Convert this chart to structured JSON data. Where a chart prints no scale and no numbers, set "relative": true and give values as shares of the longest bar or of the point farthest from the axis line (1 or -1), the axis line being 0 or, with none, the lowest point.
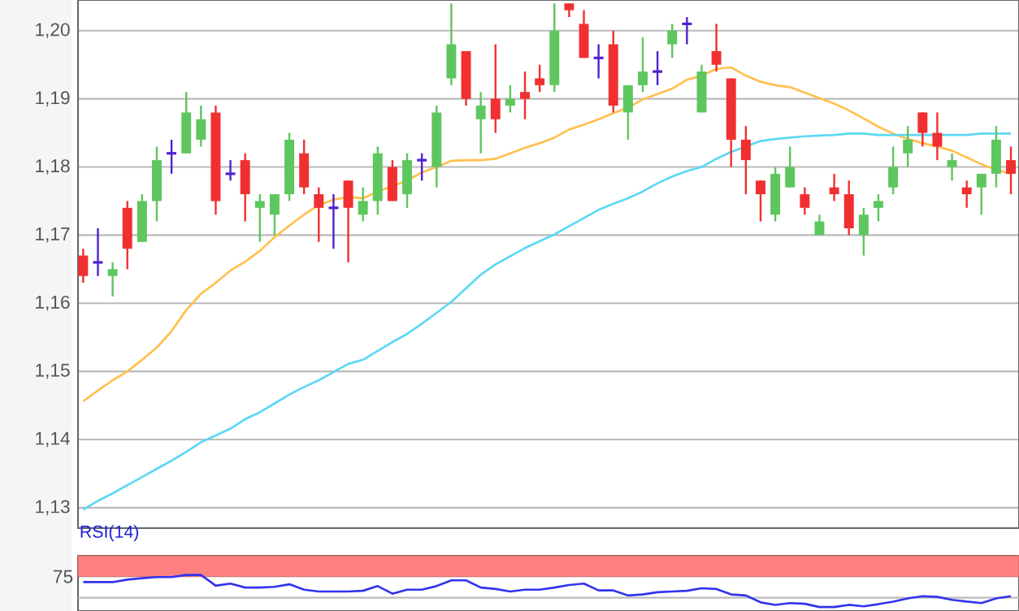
{
  "chart_data": [
    {
      "type": "candlestick",
      "categories": [
        null,
        null,
        null,
        null,
        null,
        null,
        null,
        null,
        null,
        null,
        null,
        null,
        null,
        null,
        null,
        null,
        null,
        null,
        null,
        null,
        null,
        null,
        null,
        null,
        null,
        null,
        null,
        null,
        null,
        null,
        null,
        null,
        null,
        null,
        null,
        null,
        null,
        null,
        null,
        null,
        null,
        null,
        null,
        null,
        null,
        null,
        null,
        null,
        null,
        null,
        null,
        null,
        null,
        null,
        null,
        null,
        null,
        null,
        null,
        null,
        null,
        null,
        null,
        null
      ],
      "ohlc": [
        [
          1.167,
          1.168,
          1.163,
          1.164
        ],
        [
          1.166,
          1.171,
          1.164,
          1.166
        ],
        [
          1.164,
          1.166,
          1.161,
          1.165
        ],
        [
          1.174,
          1.175,
          1.165,
          1.168
        ],
        [
          1.169,
          1.176,
          1.169,
          1.175
        ],
        [
          1.175,
          1.183,
          1.172,
          1.181
        ],
        [
          1.182,
          1.184,
          1.179,
          1.182
        ],
        [
          1.182,
          1.191,
          1.182,
          1.188
        ],
        [
          1.184,
          1.189,
          1.183,
          1.187
        ],
        [
          1.188,
          1.189,
          1.173,
          1.175
        ],
        [
          1.179,
          1.181,
          1.178,
          1.179
        ],
        [
          1.181,
          1.182,
          1.172,
          1.176
        ],
        [
          1.174,
          1.176,
          1.169,
          1.175
        ],
        [
          1.173,
          1.176,
          1.17,
          1.176
        ],
        [
          1.176,
          1.185,
          1.175,
          1.184
        ],
        [
          1.182,
          1.184,
          1.176,
          1.177
        ],
        [
          1.176,
          1.177,
          1.169,
          1.174
        ],
        [
          1.174,
          1.176,
          1.168,
          1.174
        ],
        [
          1.178,
          1.178,
          1.166,
          1.174
        ],
        [
          1.173,
          1.177,
          1.172,
          1.175
        ],
        [
          1.175,
          1.183,
          1.173,
          1.182
        ],
        [
          1.18,
          1.181,
          1.175,
          1.175
        ],
        [
          1.176,
          1.182,
          1.174,
          1.181
        ],
        [
          1.181,
          1.182,
          1.178,
          1.181
        ],
        [
          1.18,
          1.189,
          1.177,
          1.188
        ],
        [
          1.193,
          1.204,
          1.192,
          1.198
        ],
        [
          1.197,
          1.197,
          1.189,
          1.19
        ],
        [
          1.187,
          1.191,
          1.182,
          1.189
        ],
        [
          1.19,
          1.198,
          1.185,
          1.187
        ],
        [
          1.189,
          1.192,
          1.188,
          1.19
        ],
        [
          1.191,
          1.194,
          1.187,
          1.19
        ],
        [
          1.193,
          1.195,
          1.191,
          1.192
        ],
        [
          1.192,
          1.204,
          1.191,
          1.2
        ],
        [
          1.204,
          1.204,
          1.202,
          1.203
        ],
        [
          1.201,
          1.203,
          1.196,
          1.196
        ],
        [
          1.196,
          1.198,
          1.193,
          1.196
        ],
        [
          1.198,
          1.2,
          1.188,
          1.189
        ],
        [
          1.188,
          1.192,
          1.184,
          1.192
        ],
        [
          1.192,
          1.199,
          1.191,
          1.194
        ],
        [
          1.194,
          1.197,
          1.192,
          1.194
        ],
        [
          1.198,
          1.201,
          1.196,
          1.2
        ],
        [
          1.201,
          1.202,
          1.198,
          1.201
        ],
        [
          1.188,
          1.195,
          1.188,
          1.194
        ],
        [
          1.197,
          1.201,
          1.194,
          1.195
        ],
        [
          1.193,
          1.193,
          1.18,
          1.184
        ],
        [
          1.184,
          1.186,
          1.176,
          1.181
        ],
        [
          1.178,
          1.178,
          1.172,
          1.176
        ],
        [
          1.173,
          1.18,
          1.172,
          1.179
        ],
        [
          1.177,
          1.183,
          1.177,
          1.18
        ],
        [
          1.176,
          1.177,
          1.173,
          1.174
        ],
        [
          1.17,
          1.173,
          1.17,
          1.172
        ],
        [
          1.177,
          1.179,
          1.175,
          1.176
        ],
        [
          1.176,
          1.178,
          1.17,
          1.171
        ],
        [
          1.17,
          1.174,
          1.167,
          1.173
        ],
        [
          1.174,
          1.176,
          1.172,
          1.175
        ],
        [
          1.177,
          1.183,
          1.176,
          1.18
        ],
        [
          1.182,
          1.186,
          1.18,
          1.184
        ],
        [
          1.188,
          1.188,
          1.183,
          1.185
        ],
        [
          1.185,
          1.188,
          1.181,
          1.183
        ],
        [
          1.18,
          1.182,
          1.178,
          1.181
        ],
        [
          1.177,
          1.178,
          1.174,
          1.176
        ],
        [
          1.177,
          1.179,
          1.173,
          1.179
        ],
        [
          1.179,
          1.186,
          1.177,
          1.184
        ],
        [
          1.181,
          1.183,
          1.176,
          1.179
        ]
      ],
      "colors": [
        "#f03030",
        "#5020d0",
        "#5ec65e",
        "#f03030",
        "#5ec65e",
        "#5ec65e",
        "#5020d0",
        "#5ec65e",
        "#5ec65e",
        "#f03030",
        "#5020d0",
        "#f03030",
        "#5ec65e",
        "#5ec65e",
        "#5ec65e",
        "#f03030",
        "#f03030",
        "#5020d0",
        "#f03030",
        "#5ec65e",
        "#5ec65e",
        "#f03030",
        "#5ec65e",
        "#5020d0",
        "#5ec65e",
        "#5ec65e",
        "#f03030",
        "#5ec65e",
        "#f03030",
        "#5ec65e",
        "#f03030",
        "#f03030",
        "#5ec65e",
        "#f03030",
        "#f03030",
        "#5020d0",
        "#f03030",
        "#5ec65e",
        "#5ec65e",
        "#5020d0",
        "#5ec65e",
        "#5020d0",
        "#5ec65e",
        "#f03030",
        "#f03030",
        "#f03030",
        "#f03030",
        "#5ec65e",
        "#5ec65e",
        "#f03030",
        "#5ec65e",
        "#f03030",
        "#f03030",
        "#5ec65e",
        "#5ec65e",
        "#5ec65e",
        "#5ec65e",
        "#f03030",
        "#f03030",
        "#5ec65e",
        "#f03030",
        "#5ec65e",
        "#5ec65e",
        "#f03030"
      ],
      "series": [
        {
          "type": "line",
          "color": "#ffc04d",
          "values": [
            1.1456,
            1.1472,
            1.1487,
            1.15,
            1.1517,
            1.1535,
            1.1559,
            1.159,
            1.1614,
            1.163,
            1.1648,
            1.1661,
            1.1677,
            1.1697,
            1.1714,
            1.173,
            1.1744,
            1.1752,
            1.1756,
            1.1754,
            1.1764,
            1.1772,
            1.178,
            1.1792,
            1.18,
            1.1809,
            1.181,
            1.181,
            1.1812,
            1.182,
            1.1828,
            1.1835,
            1.1843,
            1.1855,
            1.1862,
            1.187,
            1.1879,
            1.1887,
            1.1899,
            1.1907,
            1.1915,
            1.1928,
            1.1934,
            1.1944,
            1.1946,
            1.1934,
            1.1925,
            1.192,
            1.1917,
            1.1909,
            1.1901,
            1.1893,
            1.1883,
            1.1871,
            1.1859,
            1.1849,
            1.1841,
            1.1835,
            1.183,
            1.1824,
            1.1814,
            1.1804,
            1.1796,
            1.179
          ]
        },
        {
          "type": "line",
          "color": "#5bd8f5",
          "values": [
            1.1297,
            1.131,
            1.1321,
            1.1333,
            1.1345,
            1.1357,
            1.1369,
            1.1382,
            1.1396,
            1.1406,
            1.1416,
            1.143,
            1.144,
            1.1453,
            1.1466,
            1.1477,
            1.1487,
            1.1499,
            1.1511,
            1.1517,
            1.153,
            1.1543,
            1.1555,
            1.157,
            1.1586,
            1.1602,
            1.1622,
            1.1642,
            1.1657,
            1.1669,
            1.1681,
            1.1691,
            1.1701,
            1.1713,
            1.1725,
            1.1737,
            1.1746,
            1.1754,
            1.1764,
            1.1776,
            1.1786,
            1.1794,
            1.18,
            1.1812,
            1.1822,
            1.183,
            1.1838,
            1.1841,
            1.1843,
            1.1845,
            1.1846,
            1.1847,
            1.1849,
            1.1849,
            1.1847,
            1.1847,
            1.1847,
            1.1847,
            1.1847,
            1.1847,
            1.1847,
            1.1849,
            1.1849,
            1.1849
          ]
        }
      ],
      "ylim": [
        1.127,
        1.2045
      ],
      "yticks": [
        {
          "value": 1.13,
          "label": "1,13"
        },
        {
          "value": 1.14,
          "label": "1,14"
        },
        {
          "value": 1.15,
          "label": "1,15"
        },
        {
          "value": 1.16,
          "label": "1,16"
        },
        {
          "value": 1.17,
          "label": "1,17"
        },
        {
          "value": 1.18,
          "label": "1,18"
        },
        {
          "value": 1.19,
          "label": "1,19"
        },
        {
          "value": 1.2,
          "label": "1,20"
        }
      ],
      "grid": "y"
    },
    {
      "type": "line",
      "title": "RSI(14)",
      "categories": [
        null,
        null,
        null,
        null,
        null,
        null,
        null,
        null,
        null,
        null,
        null,
        null,
        null,
        null,
        null,
        null,
        null,
        null,
        null,
        null,
        null,
        null,
        null,
        null,
        null,
        null,
        null,
        null,
        null,
        null,
        null,
        null,
        null,
        null,
        null,
        null,
        null,
        null,
        null,
        null,
        null,
        null,
        null,
        null,
        null,
        null,
        null,
        null,
        null,
        null,
        null,
        null,
        null,
        null,
        null,
        null,
        null,
        null,
        null,
        null,
        null,
        null,
        null,
        null
      ],
      "series": [
        {
          "color": "#3333ee",
          "values": [
            0.8,
            0.8,
            0.8,
            0.87,
            0.91,
            0.94,
            0.94,
            1,
            1,
            0.7,
            0.76,
            0.65,
            0.65,
            0.67,
            0.74,
            0.59,
            0.54,
            0.54,
            0.54,
            0.56,
            0.69,
            0.48,
            0.59,
            0.59,
            0.69,
            0.85,
            0.85,
            0.65,
            0.61,
            0.54,
            0.59,
            0.59,
            0.65,
            0.72,
            0.76,
            0.57,
            0.57,
            0.43,
            0.46,
            0.52,
            0.54,
            0.56,
            0.63,
            0.61,
            0.46,
            0.43,
            0.24,
            0.17,
            0.22,
            0.2,
            0.11,
            0.11,
            0.17,
            0.13,
            0.19,
            0.26,
            0.35,
            0.41,
            0.39,
            0.31,
            0.26,
            0.22,
            0.35,
            0.41
          ]
        }
      ],
      "relative": true,
      "annotations": [
        "75"
      ],
      "bands": [
        {
          "axis": "y",
          "from": 0.95,
          "to": 1.53,
          "color": "#ff8080"
        }
      ],
      "ref_lines": [
        {
          "axis": "y",
          "value": 0.37,
          "color": "#bbbbbb"
        }
      ]
    }
  ]
}
